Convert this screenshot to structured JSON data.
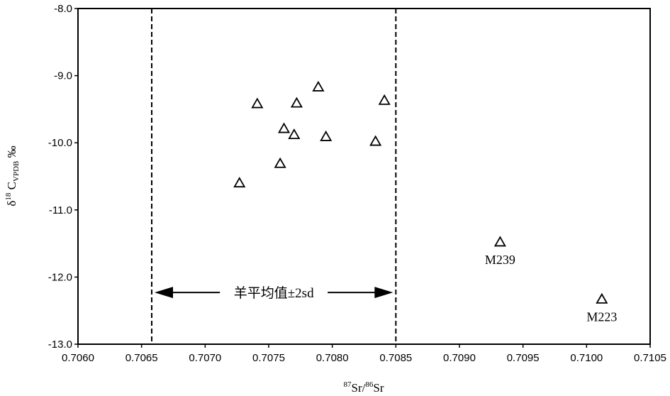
{
  "chart_data": {
    "type": "scatter",
    "title": "",
    "xlabel": {
      "sup1": "87",
      "base1": "Sr/",
      "sup2": "86",
      "base2": "Sr"
    },
    "ylabel": {
      "prefix": "δ",
      "sup": "18",
      "base": " C",
      "sub": "VPDB",
      "suffix": " ‰"
    },
    "xlim": [
      0.706,
      0.7105
    ],
    "ylim": [
      -13.0,
      -8.0
    ],
    "x_ticks": [
      "0.7060",
      "0.7065",
      "0.7070",
      "0.7075",
      "0.7080",
      "0.7085",
      "0.7090",
      "0.7095",
      "0.7100",
      "0.7105"
    ],
    "x_tick_values": [
      0.706,
      0.7065,
      0.707,
      0.7075,
      0.708,
      0.7085,
      0.709,
      0.7095,
      0.71,
      0.7105
    ],
    "y_ticks": [
      "-8.0",
      "-9.0",
      "-10.0",
      "-11.0",
      "-12.0",
      "-13.0"
    ],
    "y_tick_values": [
      -8.0,
      -9.0,
      -10.0,
      -11.0,
      -12.0,
      -13.0
    ],
    "grid": false,
    "marker": "open-triangle",
    "points": [
      {
        "x": 0.70727,
        "y": -10.6,
        "label": ""
      },
      {
        "x": 0.70741,
        "y": -9.42,
        "label": ""
      },
      {
        "x": 0.70759,
        "y": -10.31,
        "label": ""
      },
      {
        "x": 0.70762,
        "y": -9.79,
        "label": ""
      },
      {
        "x": 0.7077,
        "y": -9.88,
        "label": ""
      },
      {
        "x": 0.70772,
        "y": -9.41,
        "label": ""
      },
      {
        "x": 0.70789,
        "y": -9.17,
        "label": ""
      },
      {
        "x": 0.70795,
        "y": -9.91,
        "label": ""
      },
      {
        "x": 0.70834,
        "y": -9.98,
        "label": ""
      },
      {
        "x": 0.70841,
        "y": -9.37,
        "label": ""
      },
      {
        "x": 0.70932,
        "y": -11.48,
        "label": "M239"
      },
      {
        "x": 0.71012,
        "y": -12.33,
        "label": "M223"
      }
    ],
    "reference_lines": [
      {
        "orientation": "vertical",
        "x": 0.70658,
        "style": "dashed"
      },
      {
        "orientation": "vertical",
        "x": 0.7085,
        "style": "dashed"
      }
    ],
    "range_annotation": {
      "text": "羊平均值±2sd",
      "x_start": 0.70658,
      "x_end": 0.7085,
      "y": -12.23
    }
  }
}
